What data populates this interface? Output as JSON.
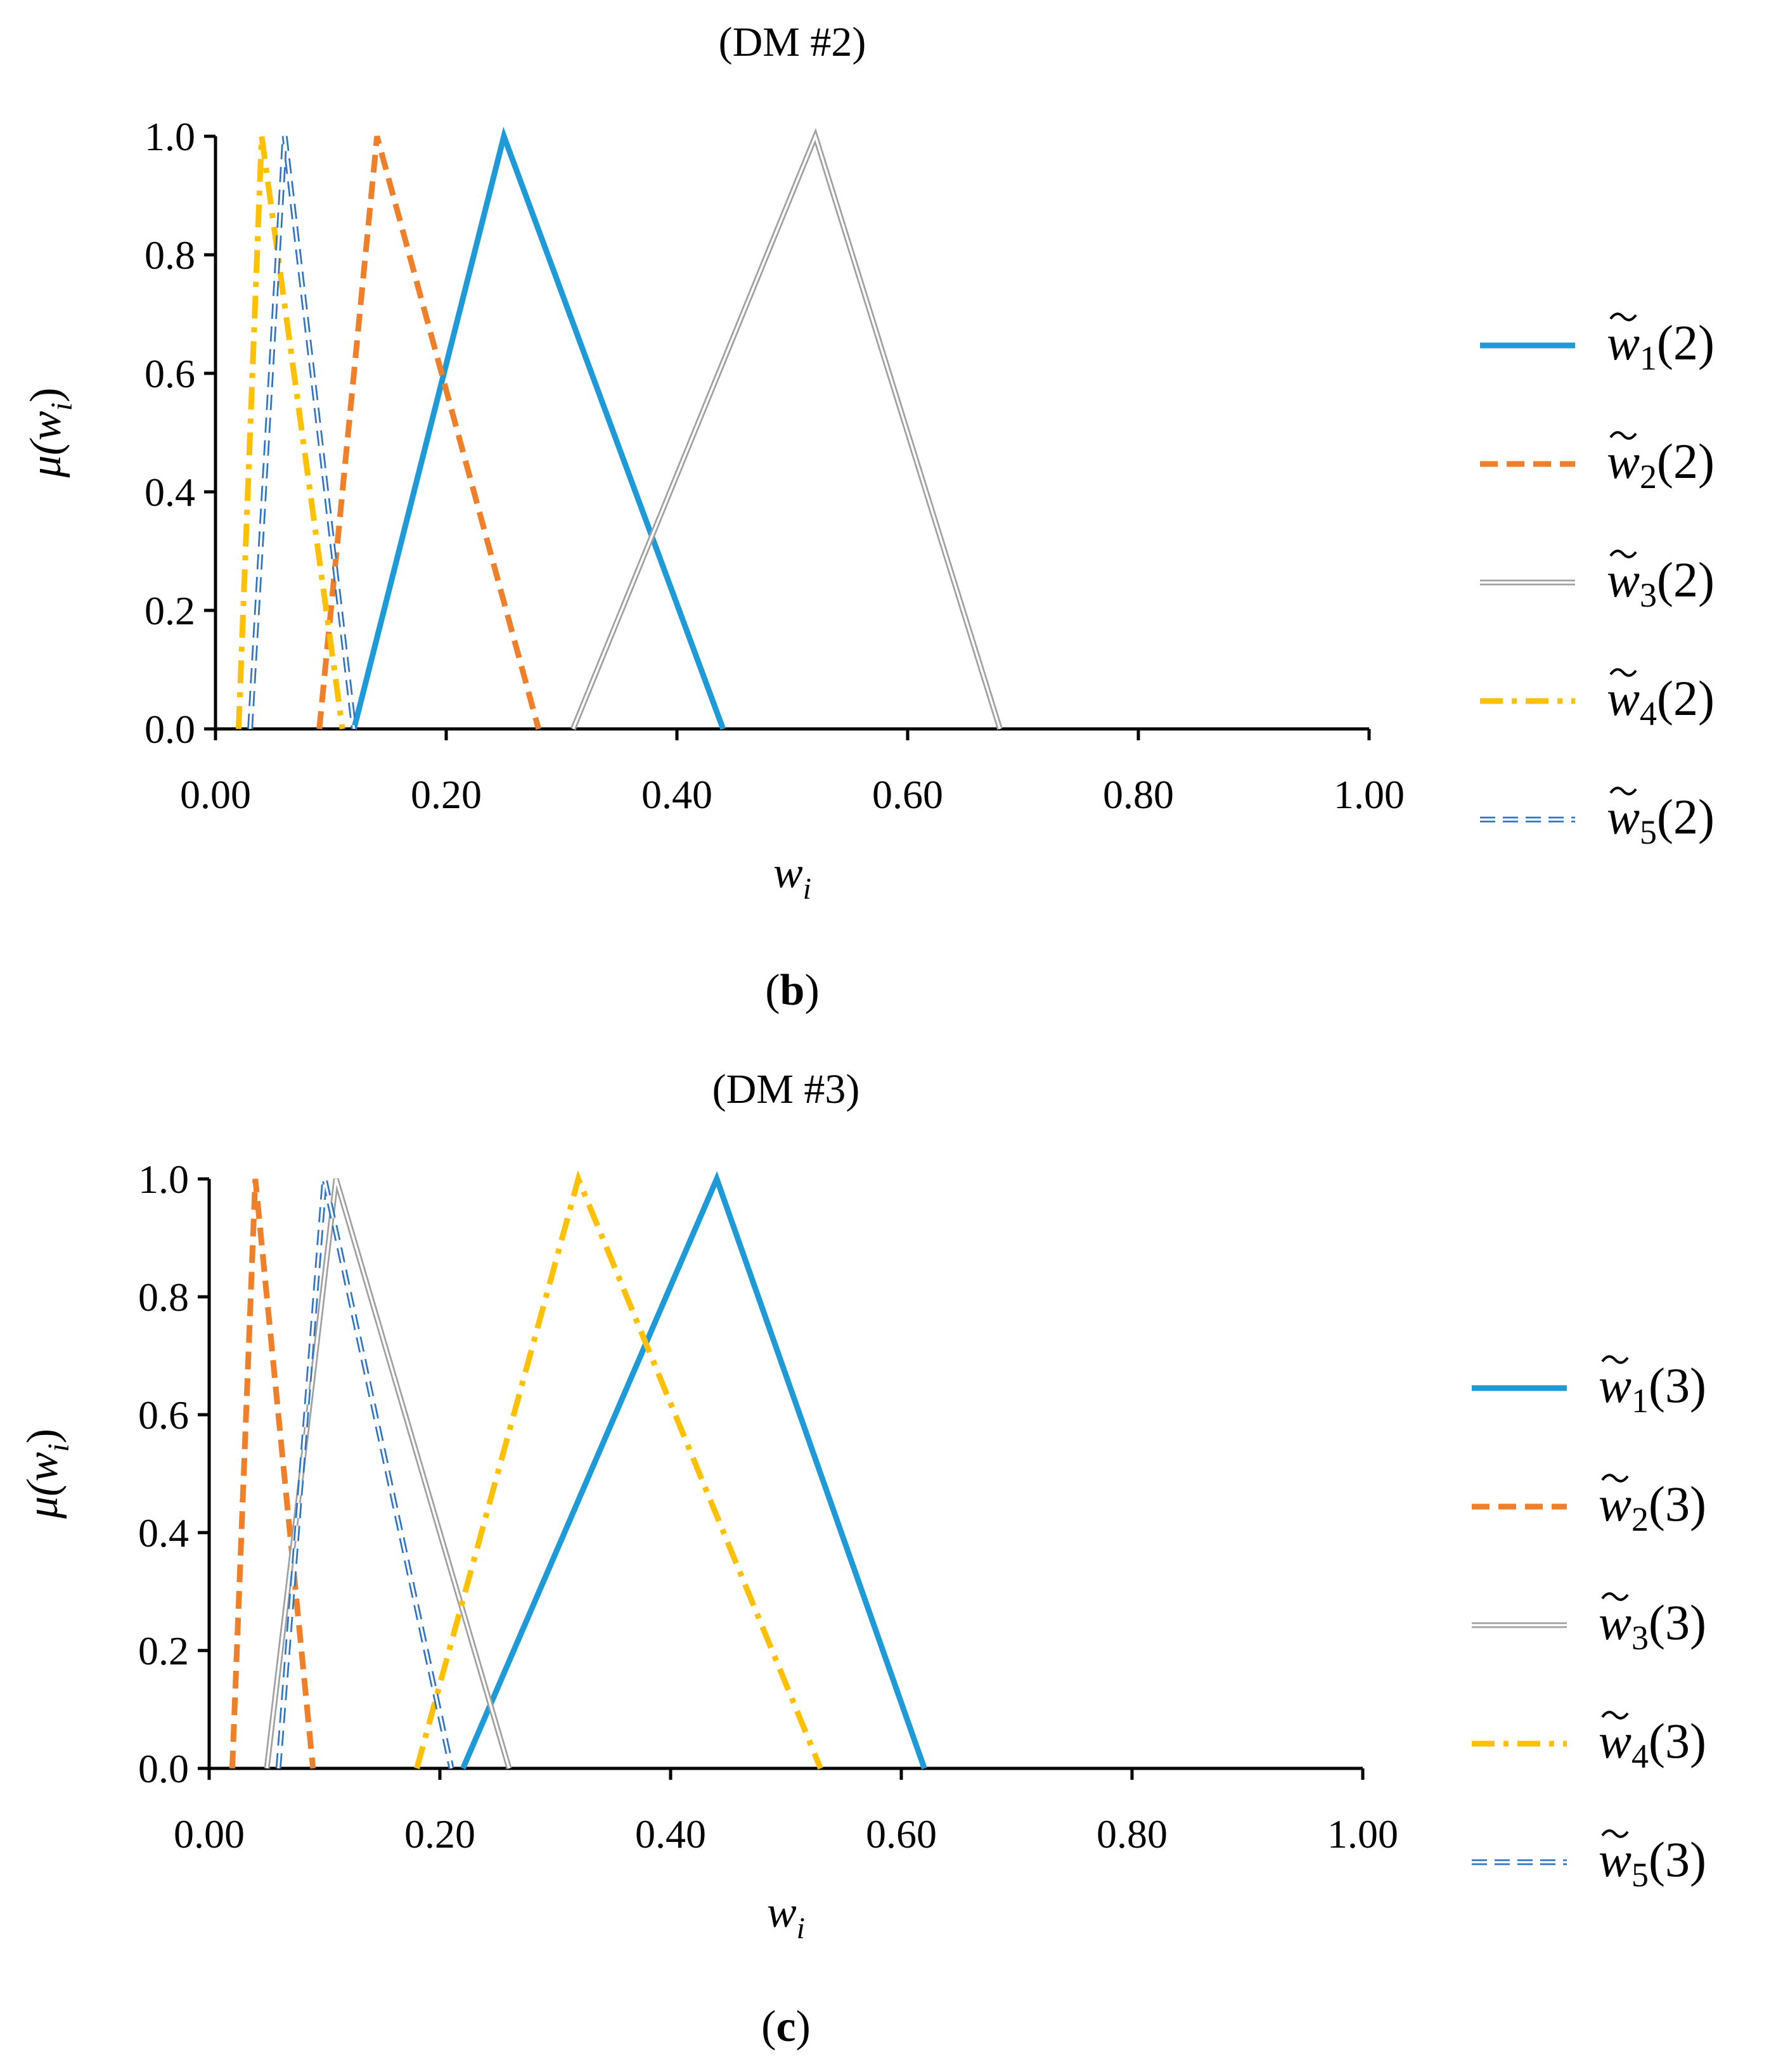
{
  "chart_data": [
    {
      "type": "line",
      "title": "(DM #2)",
      "caption": {
        "open": "(",
        "letter": "b",
        "close": ")"
      },
      "xlabel": "w",
      "xlabel_sub": "i",
      "ylabel": "μ(w",
      "ylabel_sub": "i",
      "ylabel_close": ")",
      "xlim": [
        0,
        1
      ],
      "ylim": [
        0,
        1
      ],
      "xticks": [
        "0.00",
        "0.20",
        "0.40",
        "0.60",
        "0.80",
        "1.00"
      ],
      "yticks": [
        "0.0",
        "0.2",
        "0.4",
        "0.6",
        "0.8",
        "1.0"
      ],
      "series": [
        {
          "name": "w̃1(2)",
          "var": "w",
          "sub": "1",
          "arg": "(2)",
          "style": "solid",
          "color": "#1f9ad8",
          "x": [
            0.12,
            0.25,
            0.44
          ],
          "y": [
            0,
            1,
            0
          ]
        },
        {
          "name": "w̃2(2)",
          "var": "w",
          "sub": "2",
          "arg": "(2)",
          "style": "dash",
          "color": "#f07f2a",
          "x": [
            0.09,
            0.14,
            0.28
          ],
          "y": [
            0,
            1,
            0
          ]
        },
        {
          "name": "w̃3(2)",
          "var": "w",
          "sub": "3",
          "arg": "(2)",
          "style": "double",
          "color": "#a0a0a0",
          "x": [
            0.31,
            0.52,
            0.68
          ],
          "y": [
            0,
            1,
            0
          ]
        },
        {
          "name": "w̃4(2)",
          "var": "w",
          "sub": "4",
          "arg": "(2)",
          "style": "dashdot",
          "color": "#ffc000",
          "x": [
            0.02,
            0.04,
            0.11
          ],
          "y": [
            0,
            1,
            0
          ]
        },
        {
          "name": "w̃5(2)",
          "var": "w",
          "sub": "5",
          "arg": "(2)",
          "style": "doubledash",
          "color": "#2e75c6",
          "x": [
            0.03,
            0.06,
            0.12
          ],
          "y": [
            0,
            1,
            0
          ]
        }
      ]
    },
    {
      "type": "line",
      "title": "(DM #3)",
      "caption": {
        "open": "(",
        "letter": "c",
        "close": ")"
      },
      "xlabel": "w",
      "xlabel_sub": "i",
      "ylabel": "μ(w",
      "ylabel_sub": "i",
      "ylabel_close": ")",
      "xlim": [
        0,
        1
      ],
      "ylim": [
        0,
        1
      ],
      "xticks": [
        "0.00",
        "0.20",
        "0.40",
        "0.60",
        "0.80",
        "1.00"
      ],
      "yticks": [
        "0.0",
        "0.2",
        "0.4",
        "0.6",
        "0.8",
        "1.0"
      ],
      "series": [
        {
          "name": "w̃1(3)",
          "var": "w",
          "sub": "1",
          "arg": "(3)",
          "style": "solid",
          "color": "#1f9ad8",
          "x": [
            0.22,
            0.44,
            0.62
          ],
          "y": [
            0,
            1,
            0
          ]
        },
        {
          "name": "w̃2(3)",
          "var": "w",
          "sub": "2",
          "arg": "(3)",
          "style": "dash",
          "color": "#f07f2a",
          "x": [
            0.02,
            0.04,
            0.09
          ],
          "y": [
            0,
            1,
            0
          ]
        },
        {
          "name": "w̃3(3)",
          "var": "w",
          "sub": "3",
          "arg": "(3)",
          "style": "double",
          "color": "#a0a0a0",
          "x": [
            0.05,
            0.11,
            0.26
          ],
          "y": [
            0,
            1,
            0
          ]
        },
        {
          "name": "w̃4(3)",
          "var": "w",
          "sub": "4",
          "arg": "(3)",
          "style": "dashdot",
          "color": "#ffc000",
          "x": [
            0.18,
            0.32,
            0.53
          ],
          "y": [
            0,
            1,
            0
          ]
        },
        {
          "name": "w̃5(3)",
          "var": "w",
          "sub": "5",
          "arg": "(3)",
          "style": "doubledash",
          "color": "#2e75c6",
          "x": [
            0.06,
            0.1,
            0.21
          ],
          "y": [
            0,
            1,
            0
          ]
        }
      ]
    }
  ]
}
